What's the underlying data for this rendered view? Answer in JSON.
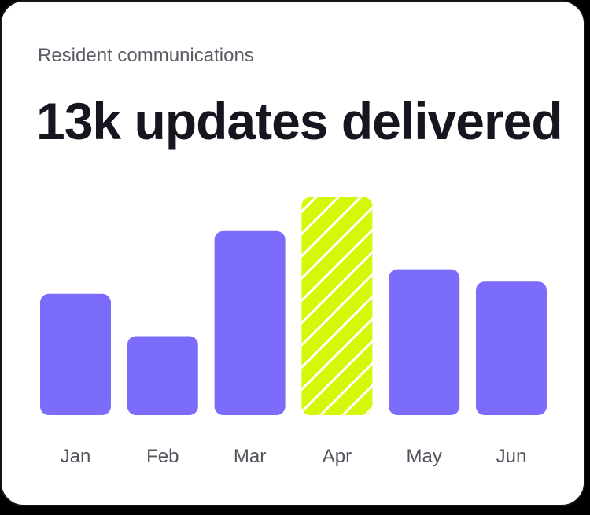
{
  "card": {
    "subtitle": "Resident communications",
    "headline": "13k updates delivered"
  },
  "colors": {
    "bar": "#7b6cfb",
    "highlight": "#d4f70a",
    "hatch": "#ffffff",
    "label": "#55525e"
  },
  "chart_data": {
    "type": "bar",
    "categories": [
      "Jan",
      "Feb",
      "Mar",
      "Apr",
      "May",
      "Jun"
    ],
    "values": [
      158,
      103,
      240,
      284,
      190,
      174
    ],
    "highlight_index": 3,
    "title": "",
    "xlabel": "",
    "ylabel": "",
    "ylim": [
      0,
      290
    ],
    "grid": false,
    "legend": "none"
  }
}
